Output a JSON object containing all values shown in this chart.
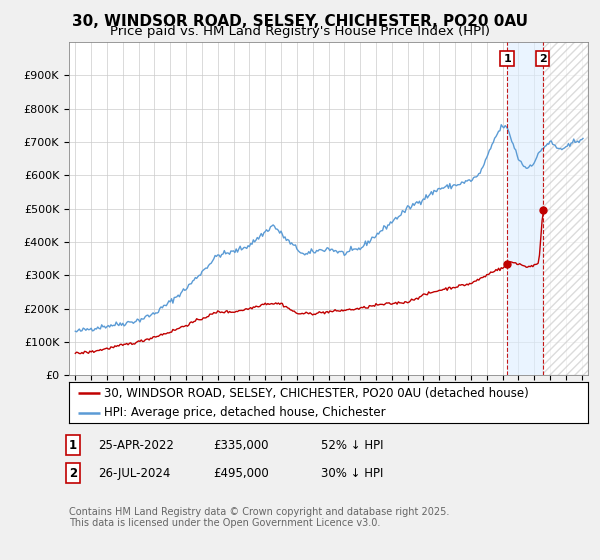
{
  "title": "30, WINDSOR ROAD, SELSEY, CHICHESTER, PO20 0AU",
  "subtitle": "Price paid vs. HM Land Registry's House Price Index (HPI)",
  "ylim": [
    0,
    1000000
  ],
  "yticks": [
    0,
    100000,
    200000,
    300000,
    400000,
    500000,
    600000,
    700000,
    800000,
    900000
  ],
  "ytick_labels": [
    "£0",
    "£100K",
    "£200K",
    "£300K",
    "£400K",
    "£500K",
    "£600K",
    "£700K",
    "£800K",
    "£900K"
  ],
  "xlim_start": 1994.6,
  "xlim_end": 2027.4,
  "xtick_years": [
    1995,
    1996,
    1997,
    1998,
    1999,
    2000,
    2001,
    2002,
    2003,
    2004,
    2005,
    2006,
    2007,
    2008,
    2009,
    2010,
    2011,
    2012,
    2013,
    2014,
    2015,
    2016,
    2017,
    2018,
    2019,
    2020,
    2021,
    2022,
    2023,
    2024,
    2025,
    2026,
    2027
  ],
  "hpi_color": "#5b9bd5",
  "price_color": "#c00000",
  "sale1_date_num": 2022.29,
  "sale1_price": 335000,
  "sale2_date_num": 2024.54,
  "sale2_price": 495000,
  "legend_property": "30, WINDSOR ROAD, SELSEY, CHICHESTER, PO20 0AU (detached house)",
  "legend_hpi": "HPI: Average price, detached house, Chichester",
  "footnote": "Contains HM Land Registry data © Crown copyright and database right 2025.\nThis data is licensed under the Open Government Licence v3.0.",
  "bg_color": "#f0f0f0",
  "plot_bg_color": "#ffffff",
  "grid_color": "#cccccc",
  "shade_color": "#ddeeff",
  "title_fontsize": 11,
  "subtitle_fontsize": 9.5,
  "tick_fontsize": 8,
  "legend_fontsize": 8.5,
  "annot_fontsize": 8.5,
  "footnote_fontsize": 7,
  "hpi_key_years": [
    1995.0,
    1996.0,
    1997.0,
    1998.0,
    1999.0,
    2000.0,
    2001.0,
    2002.0,
    2003.0,
    2004.0,
    2005.0,
    2006.0,
    2007.0,
    2007.5,
    2008.5,
    2009.5,
    2010.0,
    2011.0,
    2012.0,
    2013.0,
    2014.0,
    2015.0,
    2016.0,
    2017.0,
    2018.0,
    2019.0,
    2020.0,
    2020.5,
    2021.0,
    2021.5,
    2022.0,
    2022.3,
    2022.7,
    2023.0,
    2023.5,
    2024.0,
    2024.5,
    2025.0,
    2025.5,
    2026.0,
    2026.5,
    2027.0
  ],
  "hpi_key_vals": [
    130000,
    140000,
    148000,
    155000,
    165000,
    185000,
    220000,
    260000,
    310000,
    360000,
    370000,
    390000,
    430000,
    450000,
    400000,
    360000,
    370000,
    380000,
    365000,
    380000,
    420000,
    460000,
    500000,
    530000,
    560000,
    570000,
    585000,
    600000,
    650000,
    710000,
    750000,
    740000,
    690000,
    650000,
    620000,
    640000,
    680000,
    700000,
    680000,
    680000,
    700000,
    710000
  ],
  "price_key_years": [
    1995.0,
    1996.0,
    1997.0,
    1998.0,
    1999.0,
    2000.0,
    2001.0,
    2002.0,
    2003.0,
    2004.0,
    2005.0,
    2006.0,
    2007.0,
    2008.0,
    2009.0,
    2010.0,
    2011.0,
    2012.0,
    2013.0,
    2014.0,
    2015.0,
    2016.0,
    2017.0,
    2018.0,
    2019.0,
    2020.0,
    2021.0,
    2021.5,
    2022.0,
    2022.29,
    2022.5,
    2023.0,
    2023.5,
    2024.0,
    2024.3,
    2024.54,
    2024.7
  ],
  "price_key_vals": [
    65000,
    70000,
    80000,
    90000,
    100000,
    115000,
    130000,
    150000,
    170000,
    190000,
    190000,
    200000,
    215000,
    215000,
    185000,
    185000,
    190000,
    195000,
    200000,
    210000,
    215000,
    220000,
    240000,
    255000,
    265000,
    275000,
    300000,
    315000,
    320000,
    335000,
    340000,
    335000,
    325000,
    330000,
    335000,
    495000,
    495000
  ]
}
